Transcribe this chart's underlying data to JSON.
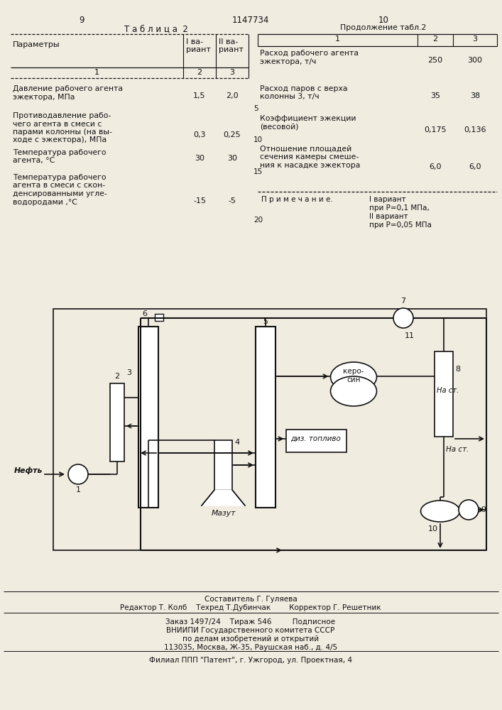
{
  "bg_color": "#f0ece0",
  "page_num_left": "9",
  "patent_num": "1147734",
  "page_num_right": "10",
  "table_title": "Т а б л и ц а  2",
  "continuation": "Продолжение табл.2",
  "left_table_rows": [
    {
      "param": "Давление рабочего агента\nэжектора, МПа",
      "v1": "1,5",
      "v2": "2,0"
    },
    {
      "param": "Противодавление рабо-\nчего агента в смеси с\nпарами колонны (на вы-\nходе с эжектора), МПа",
      "v1": "0,3",
      "v2": "0,25"
    },
    {
      "param": "Температура рабочего\nагента, °С",
      "v1": "30",
      "v2": "30"
    },
    {
      "param": "Температура рабочего\nагента в смеси с скон-\nденсированными угле-\nводородами ,°С",
      "v1": "-15",
      "v2": "-5"
    }
  ],
  "right_table_rows": [
    {
      "param": "Расход рабочего агента\nэжектора, т/ч",
      "v1": "250",
      "v2": "300"
    },
    {
      "param": "Расход паров с верха\nколонны 3, т/ч",
      "v1": "35",
      "v2": "38"
    },
    {
      "param": "Коэффициент эжекции\n(весовой)",
      "v1": "0,175",
      "v2": "0,136"
    },
    {
      "param": "Отношение площадей\nсечения камеры смеше-\nния к насадке эжектора",
      "v1": "6,0",
      "v2": "6,0"
    }
  ],
  "line_markers": [
    [
      "5",
      148
    ],
    [
      "10",
      192
    ],
    [
      "15",
      237
    ],
    [
      "20",
      305
    ]
  ],
  "note_label": "П р и м е ч а н и е.",
  "note_text": "I вариант\nпри Р=0,1 МПа,\nII вариант\nпри Р=0,05 МПа",
  "footer": [
    "Составитель Г. Гуляева",
    "Редактор Т. Колб    Техред Т.Дубинчак        Корректор Г. Решетник",
    "Заказ 1497/24    Тираж 546         Подписное",
    "ВНИИПИ Государственного комитета СССР",
    "по делам изобретений и открытий",
    "113035, Москва, Ж-35, Раушская наб., д. 4/5",
    "Филиал ППП \"Патент\", г. Ужгород, ул. Проектная, 4"
  ]
}
